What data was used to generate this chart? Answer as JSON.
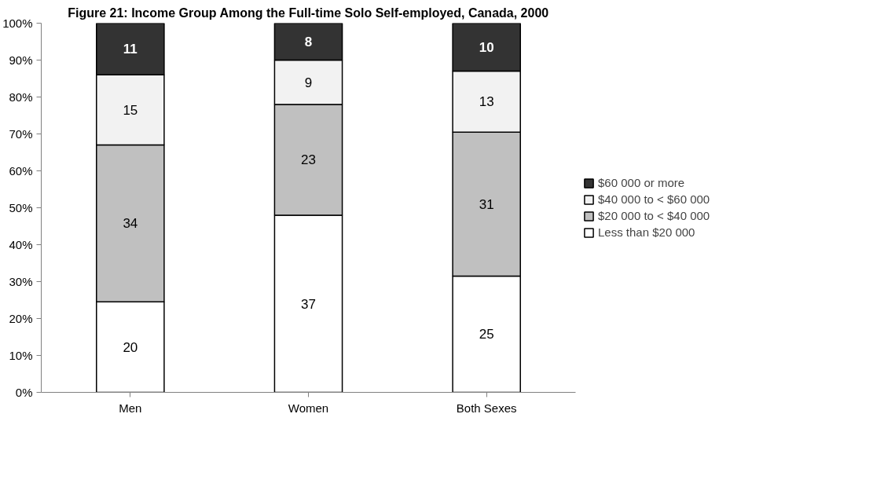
{
  "chart_data": {
    "type": "bar",
    "stacked": true,
    "title": "Figure 21: Income Group Among the Full-time Solo Self-employed, Canada, 2000",
    "categories": [
      "Men",
      "Women",
      "Both Sexes"
    ],
    "series": [
      {
        "name": "Less than $20 000",
        "color": "#ffffff",
        "values": [
          24.5,
          48,
          31.5
        ]
      },
      {
        "name": "$20 000 to < $40 000",
        "color": "#c0c0c0",
        "values": [
          42.5,
          30,
          39
        ]
      },
      {
        "name": "$40 000 to < $60 000",
        "color": "#f2f2f2",
        "values": [
          19,
          12,
          16.5
        ]
      },
      {
        "name": "$60 000 or more",
        "color": "#333333",
        "values": [
          14,
          10,
          13
        ]
      }
    ],
    "annotations": [
      "20",
      "37",
      "25",
      "34",
      "23",
      "31",
      "15",
      "9",
      "13",
      "11",
      "8",
      "10"
    ],
    "ylim": [
      0,
      100
    ],
    "yticks": [
      {
        "value": 0,
        "label": "0%"
      },
      {
        "value": 10,
        "label": "10%"
      },
      {
        "value": 20,
        "label": "20%"
      },
      {
        "value": 30,
        "label": "30%"
      },
      {
        "value": 40,
        "label": "40%"
      },
      {
        "value": 50,
        "label": "50%"
      },
      {
        "value": 60,
        "label": "60%"
      },
      {
        "value": 70,
        "label": "70%"
      },
      {
        "value": 80,
        "label": "80%"
      },
      {
        "value": 90,
        "label": "90%"
      },
      {
        "value": 100,
        "label": "100%"
      }
    ],
    "grid": false,
    "legend": "right"
  }
}
